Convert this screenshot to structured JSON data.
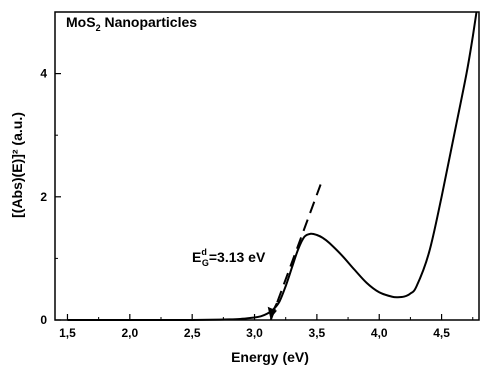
{
  "chart_data": {
    "type": "line",
    "title": "",
    "xlabel": "Energy (eV)",
    "ylabel": "[(Abs)(E)]² (a.u.)",
    "xlim": [
      1.4,
      4.8
    ],
    "ylim": [
      0,
      5
    ],
    "xticks": [
      1.5,
      2.0,
      2.5,
      3.0,
      3.5,
      4.0,
      4.5
    ],
    "xtick_labels": [
      "1,5",
      "2,0",
      "2,5",
      "3,0",
      "3,5",
      "4,0",
      "4,5"
    ],
    "yticks": [
      0,
      2,
      4
    ],
    "ytick_labels": [
      "0",
      "2",
      "4"
    ],
    "grid": false,
    "series": [
      {
        "name": "",
        "style": "solid",
        "x": [
          1.5,
          2.0,
          2.5,
          2.8,
          2.9,
          3.0,
          3.05,
          3.1,
          3.15,
          3.2,
          3.25,
          3.3,
          3.35,
          3.4,
          3.45,
          3.5,
          3.55,
          3.6,
          3.7,
          3.8,
          3.9,
          4.0,
          4.1,
          4.15,
          4.2,
          4.25,
          4.3,
          4.4,
          4.5,
          4.6,
          4.7,
          4.75,
          4.78
        ],
        "y": [
          0.0,
          0.0,
          0.0,
          0.01,
          0.02,
          0.04,
          0.06,
          0.1,
          0.17,
          0.3,
          0.55,
          0.85,
          1.15,
          1.35,
          1.4,
          1.38,
          1.33,
          1.25,
          1.05,
          0.82,
          0.6,
          0.45,
          0.38,
          0.37,
          0.38,
          0.43,
          0.55,
          1.1,
          2.0,
          3.0,
          4.0,
          4.6,
          5.0
        ]
      },
      {
        "name": "",
        "style": "dashed",
        "x": [
          3.13,
          3.53
        ],
        "y": [
          0.0,
          2.2
        ]
      }
    ],
    "annotations": {
      "top_label_main": "MoS",
      "top_label_sub": "2",
      "top_label_rest": " Nanoparticles",
      "gap_prefix": "E",
      "gap_sup": "d",
      "gap_sub": "G",
      "gap_value": "=3.13 eV",
      "gap_arrow_x": 3.13
    }
  }
}
